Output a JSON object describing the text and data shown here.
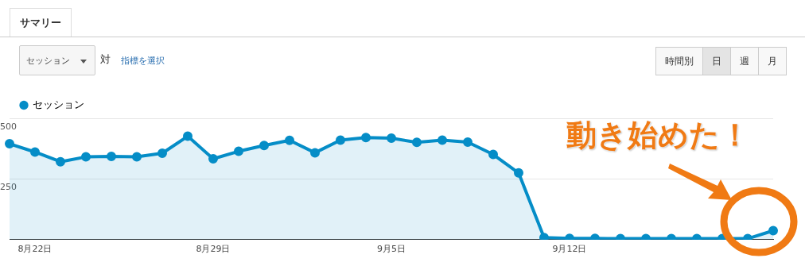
{
  "chart_data": {
    "type": "area",
    "title": "サマリー",
    "annotations": [
      "セッション",
      "対",
      "指標を選択",
      "時間別",
      "日",
      "週",
      "月",
      "動き始めた！"
    ],
    "categories": [
      null,
      "8月22日",
      null,
      null,
      null,
      null,
      null,
      null,
      "8月29日",
      null,
      null,
      null,
      null,
      null,
      null,
      "9月5日",
      null,
      null,
      null,
      null,
      null,
      null,
      "9月12日",
      null,
      null,
      null,
      null,
      null,
      null,
      null,
      null
    ],
    "series": [
      {
        "name": "セッション",
        "color": "#058dc7",
        "values": [
          395,
          361,
          321,
          341,
          343,
          341,
          356,
          426,
          333,
          364,
          388,
          409,
          358,
          410,
          421,
          418,
          401,
          410,
          402,
          351,
          275,
          8,
          5,
          5,
          4,
          4,
          4,
          4,
          4,
          4,
          37
        ]
      }
    ],
    "ylim": [
      0,
      500
    ],
    "yticks": [
      {
        "value": 0,
        "label": null
      },
      250,
      500
    ],
    "grid": "y",
    "legend": "top left",
    "marker": "circle"
  }
}
